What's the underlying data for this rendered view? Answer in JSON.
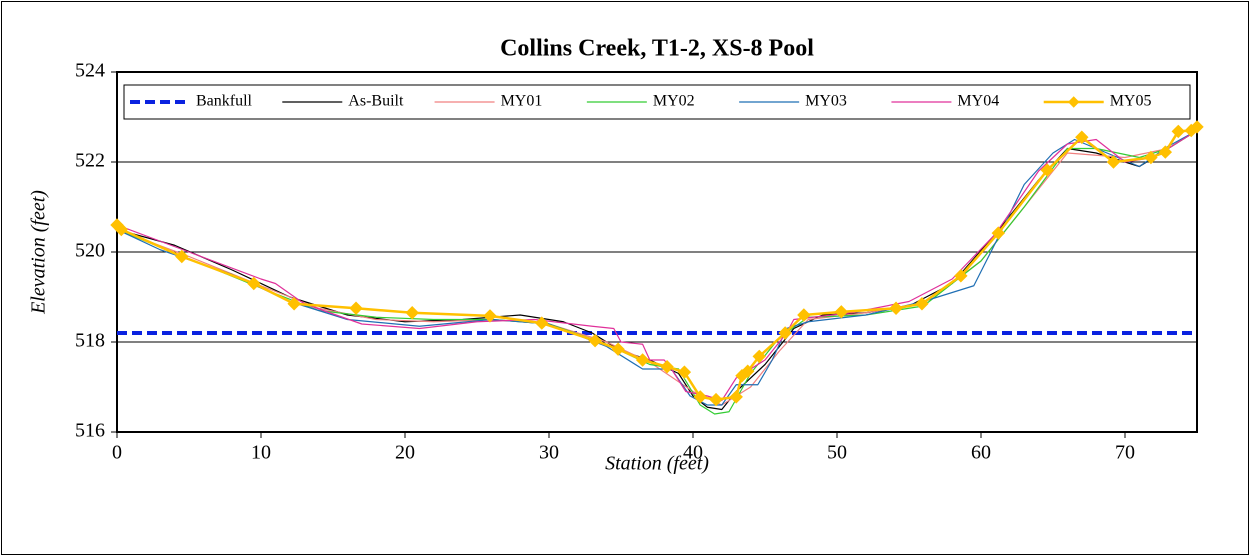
{
  "chart_data": {
    "type": "line",
    "title": "Collins Creek, T1-2, XS-8 Pool",
    "x_label": "Station (feet)",
    "y_label": "Elevation (feet)",
    "xlim": [
      0,
      75
    ],
    "xticks": [
      0,
      10,
      20,
      30,
      40,
      50,
      60,
      70
    ],
    "ylim": [
      516,
      524
    ],
    "yticks": [
      516,
      518,
      520,
      522,
      524
    ],
    "grid": true,
    "legend": "top",
    "series": [
      {
        "name": "Bankfull",
        "color": "#0a22e0",
        "line_style": "dashed",
        "x": [
          0,
          75
        ],
        "values": [
          518.2,
          518.2
        ]
      },
      {
        "name": "As-Built",
        "color": "#000000",
        "x": [
          0,
          4,
          8,
          12,
          16,
          20,
          24,
          28,
          31,
          33,
          35,
          37,
          39,
          40,
          41,
          42,
          43,
          45,
          47,
          49,
          52,
          55,
          58,
          61,
          64,
          66,
          68,
          71,
          73,
          75
        ],
        "values": [
          520.5,
          520.15,
          519.6,
          519.0,
          518.6,
          518.45,
          518.5,
          518.6,
          518.45,
          518.2,
          517.8,
          517.6,
          517.3,
          516.8,
          516.55,
          516.5,
          516.9,
          517.5,
          518.3,
          518.6,
          518.65,
          518.8,
          519.3,
          520.4,
          521.6,
          522.3,
          522.2,
          521.9,
          522.3,
          522.7
        ]
      },
      {
        "name": "MY01",
        "color": "#f08080",
        "x": [
          0,
          5,
          10,
          14,
          18,
          22,
          26,
          30,
          34,
          37,
          40,
          42,
          44,
          46,
          48,
          52,
          56,
          60,
          63,
          66,
          70,
          73,
          75
        ],
        "values": [
          520.5,
          519.9,
          519.25,
          518.75,
          518.5,
          518.45,
          518.5,
          518.4,
          518.0,
          517.55,
          516.9,
          516.6,
          517.0,
          517.8,
          518.5,
          518.65,
          518.85,
          519.8,
          521.0,
          522.2,
          522.1,
          522.3,
          522.7
        ]
      },
      {
        "name": "MY02",
        "color": "#33cc33",
        "x": [
          0,
          5,
          10,
          14,
          18,
          22,
          26,
          30,
          34,
          37,
          39,
          40.5,
          41.5,
          42.5,
          44,
          46,
          48,
          52,
          56,
          60,
          63,
          66,
          68,
          71,
          73,
          75
        ],
        "values": [
          520.5,
          519.85,
          519.2,
          518.7,
          518.55,
          518.5,
          518.5,
          518.4,
          517.95,
          517.5,
          517.4,
          516.6,
          516.4,
          516.45,
          517.3,
          518.1,
          518.55,
          518.6,
          518.8,
          519.8,
          521.0,
          522.3,
          522.3,
          522.1,
          522.3,
          522.7
        ]
      },
      {
        "name": "MY03",
        "color": "#1f6fb4",
        "x": [
          0,
          3,
          8,
          12,
          16,
          21,
          26,
          30,
          34,
          36.5,
          38.5,
          39.8,
          41,
          42,
          43,
          44.5,
          45.5,
          46.5,
          48,
          52,
          56,
          59.5,
          61,
          63,
          65,
          66.5,
          68,
          71,
          73,
          75
        ],
        "values": [
          520.5,
          520.05,
          519.5,
          518.9,
          518.5,
          518.35,
          518.5,
          518.4,
          517.9,
          517.4,
          517.4,
          516.8,
          516.6,
          516.6,
          517.05,
          517.05,
          517.6,
          518.3,
          518.45,
          518.6,
          518.9,
          519.25,
          520.2,
          521.5,
          522.2,
          522.5,
          522.3,
          521.9,
          522.35,
          522.7
        ]
      },
      {
        "name": "MY04",
        "color": "#e0309a",
        "x": [
          0,
          5,
          10,
          11,
          13,
          17,
          21,
          25,
          29,
          33,
          34.5,
          35,
          36.5,
          37,
          38,
          38.5,
          39.5,
          41,
          42,
          43,
          45,
          46.5,
          47,
          51,
          55,
          58,
          61,
          64,
          66,
          68,
          70,
          72,
          73,
          75
        ],
        "values": [
          520.6,
          520.0,
          519.4,
          519.3,
          518.85,
          518.4,
          518.3,
          518.45,
          518.5,
          518.35,
          518.3,
          518.0,
          517.95,
          517.6,
          517.6,
          517.4,
          516.9,
          516.8,
          516.7,
          517.2,
          517.6,
          518.2,
          518.5,
          518.65,
          518.9,
          519.4,
          520.4,
          521.8,
          522.4,
          522.5,
          522.0,
          522.1,
          522.3,
          522.7
        ]
      },
      {
        "name": "MY05",
        "color": "#ffc000",
        "marker": "diamond",
        "x": [
          0,
          0.3,
          4.5,
          9.5,
          12.3,
          16.6,
          20.5,
          25.9,
          29.5,
          33.2,
          34.8,
          36.5,
          38.2,
          39.4,
          40.5,
          41.6,
          43,
          43.4,
          43.8,
          44.6,
          46.4,
          47.7,
          50.3,
          54.1,
          55.9,
          58.6,
          61.2,
          64.6,
          67,
          69.2,
          71.8,
          72.8,
          73.7,
          74.6,
          75
        ],
        "values": [
          520.6,
          520.5,
          519.9,
          519.3,
          518.85,
          518.75,
          518.65,
          518.58,
          518.42,
          518.03,
          517.84,
          517.6,
          517.45,
          517.33,
          516.78,
          516.72,
          516.78,
          517.25,
          517.35,
          517.68,
          518.2,
          518.6,
          518.67,
          518.75,
          518.85,
          519.47,
          520.42,
          521.82,
          522.55,
          522.0,
          522.1,
          522.22,
          522.68,
          522.7,
          522.78
        ]
      }
    ]
  }
}
